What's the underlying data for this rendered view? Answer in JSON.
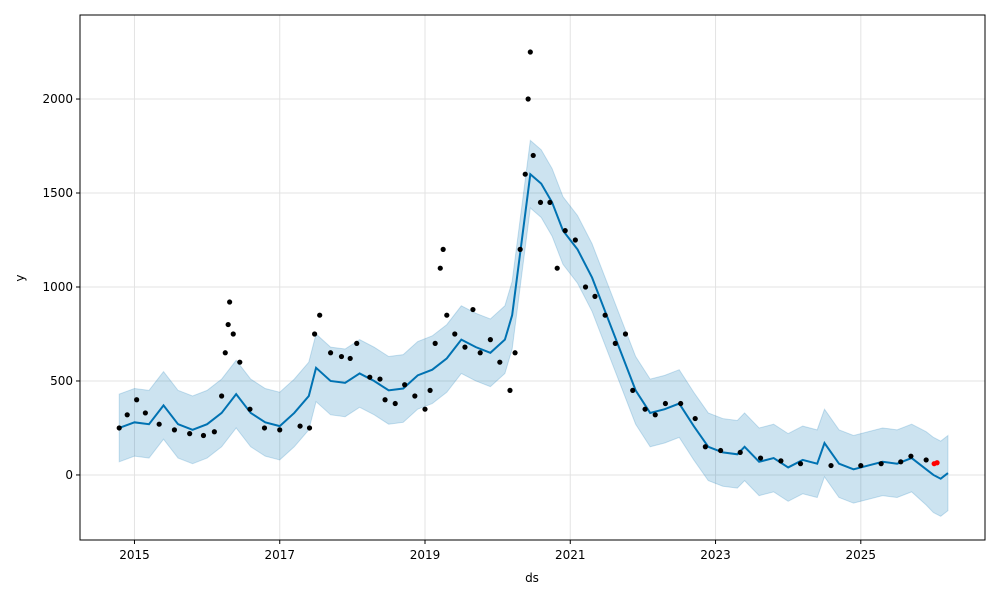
{
  "chart_data": {
    "type": "forecast",
    "xlabel": "ds",
    "ylabel": "y",
    "xlim": [
      2014.25,
      2026.71
    ],
    "ylim": [
      -346,
      2447
    ],
    "xticks": [
      2015,
      2017,
      2019,
      2021,
      2023,
      2025
    ],
    "yticks": [
      0,
      500,
      1000,
      1500,
      2000
    ],
    "grid": true,
    "series": [
      {
        "type": "area",
        "color": "#0072b2",
        "x": [
          2014.79,
          2015.0,
          2015.2,
          2015.4,
          2015.6,
          2015.8,
          2016.0,
          2016.2,
          2016.4,
          2016.6,
          2016.8,
          2017.0,
          2017.2,
          2017.4,
          2017.5,
          2017.7,
          2017.9,
          2018.1,
          2018.3,
          2018.5,
          2018.7,
          2018.9,
          2019.1,
          2019.3,
          2019.5,
          2019.7,
          2019.9,
          2020.1,
          2020.2,
          2020.3,
          2020.45,
          2020.6,
          2020.75,
          2020.9,
          2021.1,
          2021.3,
          2021.5,
          2021.7,
          2021.9,
          2022.1,
          2022.3,
          2022.5,
          2022.7,
          2022.9,
          2023.1,
          2023.3,
          2023.4,
          2023.6,
          2023.8,
          2024.0,
          2024.2,
          2024.4,
          2024.5,
          2024.7,
          2024.9,
          2025.1,
          2025.3,
          2025.5,
          2025.7,
          2025.9,
          2026.0,
          2026.1,
          2026.2
        ],
        "lower": [
          70,
          100,
          90,
          190,
          90,
          60,
          90,
          150,
          250,
          150,
          100,
          80,
          150,
          240,
          390,
          320,
          310,
          360,
          320,
          270,
          280,
          350,
          380,
          440,
          540,
          500,
          470,
          540,
          670,
          970,
          1420,
          1370,
          1270,
          1120,
          1020,
          870,
          670,
          470,
          270,
          150,
          170,
          200,
          80,
          -30,
          -60,
          -70,
          -30,
          -110,
          -90,
          -140,
          -100,
          -120,
          -10,
          -120,
          -150,
          -130,
          -110,
          -120,
          -90,
          -160,
          -200,
          -220,
          -190
        ],
        "upper": [
          430,
          460,
          450,
          550,
          450,
          420,
          450,
          510,
          610,
          510,
          460,
          440,
          510,
          600,
          750,
          680,
          670,
          720,
          680,
          630,
          640,
          710,
          740,
          800,
          900,
          860,
          830,
          900,
          1030,
          1330,
          1780,
          1730,
          1630,
          1480,
          1380,
          1230,
          1030,
          830,
          630,
          510,
          530,
          560,
          440,
          330,
          300,
          290,
          330,
          250,
          270,
          220,
          260,
          240,
          350,
          240,
          210,
          230,
          250,
          240,
          270,
          230,
          200,
          180,
          210
        ]
      },
      {
        "type": "line",
        "color": "#0072b2",
        "x": [
          2014.79,
          2015.0,
          2015.2,
          2015.4,
          2015.6,
          2015.8,
          2016.0,
          2016.2,
          2016.4,
          2016.6,
          2016.8,
          2017.0,
          2017.2,
          2017.4,
          2017.5,
          2017.7,
          2017.9,
          2018.1,
          2018.3,
          2018.5,
          2018.7,
          2018.9,
          2019.1,
          2019.3,
          2019.5,
          2019.7,
          2019.9,
          2020.1,
          2020.2,
          2020.3,
          2020.45,
          2020.6,
          2020.75,
          2020.9,
          2021.1,
          2021.3,
          2021.5,
          2021.7,
          2021.9,
          2022.1,
          2022.3,
          2022.5,
          2022.7,
          2022.9,
          2023.1,
          2023.3,
          2023.4,
          2023.6,
          2023.8,
          2024.0,
          2024.2,
          2024.4,
          2024.5,
          2024.7,
          2024.9,
          2025.1,
          2025.3,
          2025.5,
          2025.7,
          2025.9,
          2026.0,
          2026.1,
          2026.2
        ],
        "values": [
          250,
          280,
          270,
          370,
          270,
          240,
          270,
          330,
          430,
          330,
          280,
          260,
          330,
          420,
          570,
          500,
          490,
          540,
          500,
          450,
          460,
          530,
          560,
          620,
          720,
          680,
          650,
          720,
          850,
          1150,
          1600,
          1550,
          1450,
          1300,
          1200,
          1050,
          850,
          650,
          450,
          330,
          350,
          380,
          260,
          150,
          120,
          110,
          150,
          70,
          90,
          40,
          80,
          60,
          170,
          60,
          30,
          50,
          70,
          60,
          90,
          30,
          0,
          -20,
          10
        ]
      },
      {
        "type": "scatter",
        "color": "#000000",
        "x": [
          2014.79,
          2014.9,
          2015.03,
          2015.15,
          2015.34,
          2015.55,
          2015.76,
          2015.95,
          2016.1,
          2016.2,
          2016.25,
          2016.29,
          2016.31,
          2016.36,
          2016.45,
          2016.59,
          2016.79,
          2017.0,
          2017.28,
          2017.41,
          2017.48,
          2017.55,
          2017.7,
          2017.85,
          2017.97,
          2018.06,
          2018.24,
          2018.38,
          2018.45,
          2018.59,
          2018.72,
          2018.86,
          2019.0,
          2019.07,
          2019.14,
          2019.21,
          2019.25,
          2019.3,
          2019.41,
          2019.55,
          2019.66,
          2019.76,
          2019.9,
          2020.03,
          2020.17,
          2020.24,
          2020.31,
          2020.38,
          2020.42,
          2020.45,
          2020.49,
          2020.59,
          2020.72,
          2020.82,
          2020.93,
          2021.07,
          2021.21,
          2021.34,
          2021.48,
          2021.62,
          2021.76,
          2021.86,
          2022.03,
          2022.17,
          2022.31,
          2022.52,
          2022.72,
          2022.86,
          2023.07,
          2023.34,
          2023.62,
          2023.9,
          2024.17,
          2024.59,
          2025.0,
          2025.28,
          2025.55,
          2025.69,
          2025.9
        ],
        "values": [
          250,
          320,
          400,
          330,
          270,
          240,
          220,
          210,
          230,
          420,
          650,
          800,
          920,
          750,
          600,
          350,
          250,
          240,
          260,
          250,
          750,
          850,
          650,
          630,
          620,
          700,
          520,
          510,
          400,
          380,
          480,
          420,
          350,
          450,
          700,
          1100,
          1200,
          850,
          750,
          680,
          880,
          650,
          720,
          600,
          450,
          650,
          1200,
          1600,
          2000,
          2250,
          1700,
          1450,
          1450,
          1100,
          1300,
          1250,
          1000,
          950,
          850,
          700,
          750,
          450,
          350,
          320,
          380,
          380,
          300,
          150,
          130,
          120,
          90,
          75,
          60,
          50,
          50,
          60,
          70,
          100,
          80
        ]
      },
      {
        "type": "scatter",
        "color": "#ff0000",
        "x": [
          2026.01,
          2026.05
        ],
        "values": [
          60,
          65
        ]
      }
    ]
  }
}
